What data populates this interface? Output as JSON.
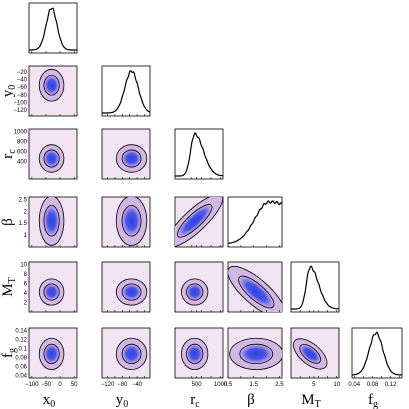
{
  "chart_data": {
    "type": "corner",
    "grid": false,
    "colors": {
      "background_outer": "#f3e4f3",
      "background_inner": "#d2b6e4",
      "core": "#2e41e0",
      "contour": "#000000",
      "curve": "#000000"
    },
    "params": [
      {
        "key": "x0",
        "sym": "x",
        "sub": "0",
        "range": [
          -110,
          60
        ],
        "ticks": [
          {
            "v": -100,
            "t": "−100"
          },
          {
            "v": -50,
            "t": "−50"
          },
          {
            "v": 0,
            "t": "0"
          },
          {
            "v": 50,
            "t": "50"
          }
        ],
        "mean": -30,
        "sd": 19
      },
      {
        "key": "y0",
        "sym": "y",
        "sub": "0",
        "range": [
          -135,
          -5
        ],
        "ticks": [
          {
            "v": -120,
            "t": "−120"
          },
          {
            "v": -100,
            "t": "−100"
          },
          {
            "v": -80,
            "t": "−80"
          },
          {
            "v": -60,
            "t": "−60"
          },
          {
            "v": -40,
            "t": "−40"
          },
          {
            "v": -20,
            "t": "−20"
          }
        ],
        "mean": -55,
        "sd": 18
      },
      {
        "key": "rc",
        "sym": "r",
        "sub": "c",
        "range": [
          50,
          1050
        ],
        "ticks": [
          {
            "v": 400,
            "t": "400"
          },
          {
            "v": 500,
            "t": "500"
          },
          {
            "v": 600,
            "t": "600"
          },
          {
            "v": 800,
            "t": "800"
          },
          {
            "v": 1000,
            "t": "1000"
          }
        ],
        "mean": 460,
        "sd": 120
      },
      {
        "key": "beta",
        "sym": "β",
        "sub": "",
        "range": [
          0.5,
          2.6
        ],
        "ticks": [
          {
            "v": 0.5,
            "t": "0.5"
          },
          {
            "v": 1,
            "t": "1"
          },
          {
            "v": 1.5,
            "t": "1.5"
          },
          {
            "v": 2,
            "t": "2"
          },
          {
            "v": 2.5,
            "t": "2.5"
          }
        ],
        "mean": 1.6,
        "sd": 0.45
      },
      {
        "key": "MT",
        "sym": "M",
        "sub": "T",
        "range": [
          0,
          10.5
        ],
        "ticks": [
          {
            "v": 2,
            "t": "2"
          },
          {
            "v": 4,
            "t": "4"
          },
          {
            "v": 5,
            "t": "5"
          },
          {
            "v": 6,
            "t": "6"
          },
          {
            "v": 8,
            "t": "8"
          },
          {
            "v": 10,
            "t": "10"
          }
        ],
        "mean": 4.2,
        "sd": 1.2
      },
      {
        "key": "fg",
        "sym": "f",
        "sub": "g",
        "range": [
          0.035,
          0.145
        ],
        "ticks": [
          {
            "v": 0.04,
            "t": "0.04"
          },
          {
            "v": 0.06,
            "t": "0.06"
          },
          {
            "v": 0.08,
            "t": "0.08"
          },
          {
            "v": 0.1,
            "t": "0.1"
          },
          {
            "v": 0.12,
            "t": "0.12"
          },
          {
            "v": 0.14,
            "t": "0.14"
          }
        ],
        "mean": 0.088,
        "sd": 0.015
      }
    ],
    "row_ticks": {
      "y0": [
        "−120",
        "−100",
        "−80",
        "−60",
        "−40",
        "−20"
      ],
      "rc": [
        "400",
        "600",
        "800",
        "1000"
      ],
      "beta": [
        "1",
        "1.5",
        "2",
        "2.5"
      ],
      "MT": [
        "2",
        "4",
        "6",
        "8",
        "10"
      ],
      "fg": [
        "0.04",
        "0.06",
        "0.08",
        "0.1",
        "0.12",
        "0.14"
      ]
    },
    "col_ticks": {
      "x0": [
        "−100",
        "−50",
        "0",
        "50"
      ],
      "y0": [
        "−120",
        "−80",
        "−40"
      ],
      "rc": [
        "500",
        "1000"
      ],
      "beta": [
        "0.5",
        "1.5",
        "2.5"
      ],
      "MT": [
        "5",
        "10"
      ],
      "fg": [
        "0.04",
        "0.08",
        "0.12"
      ]
    },
    "marginals": [
      {
        "key": "x0",
        "shape": "gaussian",
        "peak_at": -30
      },
      {
        "key": "y0",
        "shape": "gaussian",
        "peak_at": -55
      },
      {
        "key": "rc",
        "shape": "right-skewed",
        "peak_at": 430
      },
      {
        "key": "beta",
        "shape": "rising-plateau",
        "peak_at": 2.2
      },
      {
        "key": "MT",
        "shape": "right-skewed",
        "peak_at": 4.0
      },
      {
        "key": "fg",
        "shape": "gaussian",
        "peak_at": 0.088
      }
    ],
    "correlations": {
      "rc_beta": 0.8,
      "beta_MT": -0.6,
      "MT_fg": -0.5
    }
  }
}
